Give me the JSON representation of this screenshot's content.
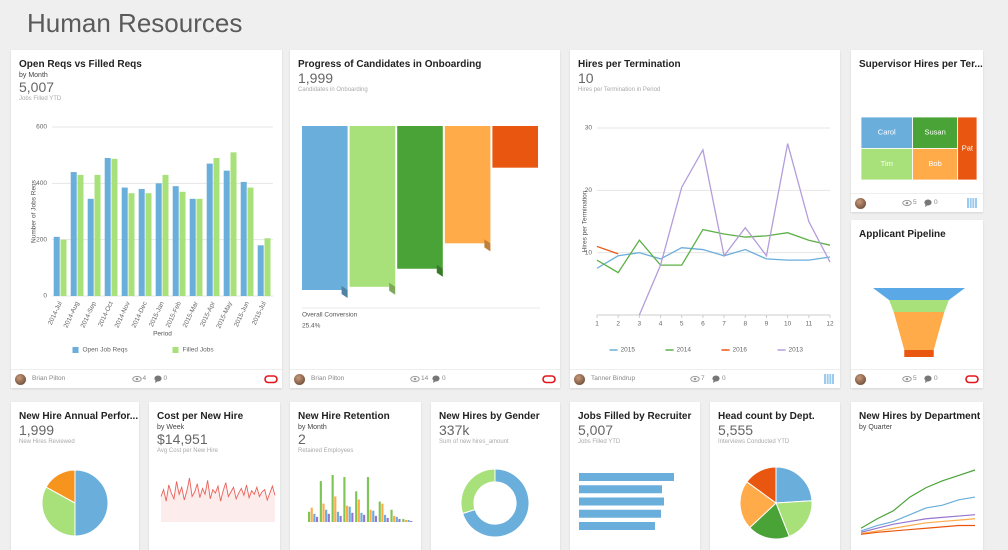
{
  "header": {
    "title": "Human Resources"
  },
  "cards": [
    {
      "title": "Open Reqs vs Filled Reqs",
      "subtitle": "by Month",
      "kpi": "5,007",
      "kpi_label": "Jobs Filled YTD",
      "footer": {
        "user": "Brian Pilton",
        "views": "4",
        "comments": "0"
      },
      "chart": {
        "type": "bar",
        "y_label": "Number of Jobs Reqs",
        "x_label": "Period",
        "categories": [
          "2014-Jul",
          "2014-Aug",
          "2014-Sep",
          "2014-Oct",
          "2014-Nov",
          "2014-Dec",
          "2015-Jan",
          "2015-Feb",
          "2015-Mar",
          "2015-Apr",
          "2015-May",
          "2015-Jun",
          "2015-Jul"
        ],
        "series": [
          {
            "name": "Open Job Reqs",
            "color": "#6aaedb",
            "values": [
              210,
              440,
              345,
              490,
              385,
              380,
              400,
              390,
              345,
              470,
              445,
              405,
              180
            ]
          },
          {
            "name": "Filled Jobs",
            "color": "#a8e07a",
            "values": [
              200,
              430,
              430,
              487,
              365,
              365,
              430,
              370,
              345,
              490,
              510,
              385,
              205
            ]
          }
        ],
        "ylim": [
          0,
          600
        ],
        "yticks": [
          0,
          200,
          400,
          600
        ],
        "grid": true
      }
    },
    {
      "title": "Progress of Candidates in Onboarding",
      "kpi": "1,999",
      "kpi_label": "Candidates in Onboarding",
      "footer": {
        "user": "Brian Pilton",
        "views": "14",
        "comments": "0"
      },
      "chart": {
        "type": "stepped-funnel",
        "values": [
          1999,
          1960,
          1740,
          1430,
          508
        ],
        "colors": [
          "#6aaedb",
          "#a8e07a",
          "#4aa336",
          "#ffab4a",
          "#e8560f"
        ],
        "annotation": "Overall Conversion",
        "annotation_value": "25.4%"
      }
    },
    {
      "title": "Hires per Termination",
      "kpi": "10",
      "kpi_label": "Hires per Termination in Period",
      "footer": {
        "user": "Tanner Bindrup",
        "views": "7",
        "comments": "0"
      },
      "chart": {
        "type": "line",
        "y_label": "Hires per Termination",
        "x": [
          1,
          2,
          3,
          4,
          5,
          6,
          7,
          8,
          9,
          10,
          11,
          12
        ],
        "xlim": [
          1,
          12
        ],
        "xticks": [
          1,
          2,
          3,
          4,
          5,
          6,
          7,
          8,
          9,
          10,
          11,
          12
        ],
        "ylim": [
          0,
          30
        ],
        "yticks": [
          10,
          20,
          30
        ],
        "grid": true,
        "series": [
          {
            "name": "2015",
            "color": "#6aaedb",
            "values": [
              7.5,
              9.5,
              10,
              9,
              10.8,
              10.5,
              9.5,
              10.5,
              9,
              8.8,
              8.8,
              9.3
            ]
          },
          {
            "name": "2014",
            "color": "#5cb046",
            "values": [
              8.8,
              6.8,
              12,
              8,
              8,
              13.7,
              13,
              12.5,
              12.7,
              13.2,
              12,
              11.2
            ]
          },
          {
            "name": "2016",
            "color": "#e8560f",
            "values": [
              11,
              9.8,
              null,
              null,
              null,
              null,
              null,
              null,
              null,
              null,
              null,
              null
            ]
          },
          {
            "name": "2013",
            "color": "#b39ddb",
            "values": [
              null,
              null,
              0,
              8,
              20.5,
              26.5,
              9.5,
              14,
              9.5,
              27.5,
              15,
              8.5
            ]
          }
        ]
      }
    },
    {
      "title": "Supervisor Hires per Ter...",
      "footer": {
        "views": "5",
        "comments": "0"
      },
      "chart": {
        "type": "treemap",
        "items": [
          {
            "name": "Carol",
            "value": 4,
            "color": "#6aaedb"
          },
          {
            "name": "Tim",
            "value": 4,
            "color": "#a8e07a"
          },
          {
            "name": "Susan",
            "value": 3.5,
            "color": "#4aa336"
          },
          {
            "name": "Bob",
            "value": 3.5,
            "color": "#ffab4a"
          },
          {
            "name": "Pat",
            "value": 3,
            "color": "#e8560f"
          }
        ]
      }
    },
    {
      "title": "Applicant Pipeline",
      "footer": {
        "views": "5",
        "comments": "0"
      },
      "chart": {
        "type": "funnel",
        "values": [
          100,
          65,
          55,
          32
        ],
        "colors": [
          "#5aa9e6",
          "#a8e07a",
          "#ffab4a",
          "#e8560f"
        ]
      }
    },
    {
      "title": "New Hire Annual Perfor...",
      "kpi": "1,999",
      "kpi_label": "New Hires Reviewed",
      "chart": {
        "type": "pie",
        "values": [
          50,
          33,
          17
        ],
        "colors": [
          "#6aaedb",
          "#a8e07a",
          "#f7941d"
        ]
      }
    },
    {
      "title": "Cost per New Hire",
      "subtitle": "by Week",
      "kpi": "$14,951",
      "kpi_label": "Avg Cost per New Hire",
      "chart": {
        "type": "area",
        "color": "#e8635a",
        "values": [
          22,
          28,
          18,
          32,
          25,
          20,
          35,
          24,
          30,
          19,
          27,
          38,
          22,
          26,
          33,
          21,
          29,
          24,
          36,
          20,
          28,
          25,
          31,
          18,
          27,
          34,
          22,
          26,
          30,
          20,
          25,
          29,
          23,
          32,
          21,
          27,
          24,
          30,
          22,
          26,
          28,
          19,
          25,
          31,
          23
        ]
      }
    },
    {
      "title": "New Hire Retention",
      "subtitle": "by Month",
      "kpi": "2",
      "kpi_label": "Retained Employees",
      "chart": {
        "type": "column",
        "series": [
          {
            "color": "#7cc653",
            "values": [
              10,
              40,
              46,
              44,
              30,
              44,
              20,
              12,
              3
            ]
          },
          {
            "color": "#ffab4a",
            "values": [
              14,
              18,
              25,
              16,
              22,
              12,
              18,
              6,
              2
            ]
          },
          {
            "color": "#6aaedb",
            "values": [
              8,
              12,
              10,
              15,
              9,
              11,
              7,
              5,
              2
            ]
          },
          {
            "color": "#9575cd",
            "values": [
              5,
              8,
              6,
              9,
              7,
              6,
              4,
              3,
              1
            ]
          }
        ]
      }
    },
    {
      "title": "New Hires by Gender",
      "kpi": "337k",
      "kpi_label": "Sum of new hires_amount",
      "chart": {
        "type": "donut",
        "values": [
          70,
          30
        ],
        "colors": [
          "#6aaedb",
          "#a8e07a"
        ]
      }
    },
    {
      "title": "Jobs Filled by Recruiter",
      "kpi": "5,007",
      "kpi_label": "Jobs Filled YTD",
      "chart": {
        "type": "hbar",
        "color": "#6aaedb",
        "values": [
          95,
          83,
          85,
          82,
          76
        ]
      }
    },
    {
      "title": "Head count by Dept.",
      "kpi": "5,555",
      "kpi_label": "Interviews Conducted YTD",
      "chart": {
        "type": "pie",
        "values": [
          24,
          20,
          19,
          22,
          15
        ],
        "colors": [
          "#6aaedb",
          "#a8e07a",
          "#4aa336",
          "#ffab4a",
          "#e8560f"
        ]
      }
    },
    {
      "title": "New Hires by Department",
      "subtitle": "by Quarter",
      "chart": {
        "type": "multiline",
        "series": [
          {
            "color": "#4aa336",
            "values": [
              5,
              12,
              18,
              28,
              35,
              40,
              44,
              48
            ]
          },
          {
            "color": "#6aaedb",
            "values": [
              3,
              7,
              10,
              15,
              20,
              22,
              26,
              28
            ]
          },
          {
            "color": "#9575cd",
            "values": [
              2,
              5,
              8,
              10,
              12,
              13,
              14,
              15
            ]
          },
          {
            "color": "#ffab4a",
            "values": [
              1,
              3,
              5,
              7,
              9,
              10,
              11,
              12
            ]
          },
          {
            "color": "#e8560f",
            "values": [
              0.5,
              2,
              3,
              4,
              5,
              6,
              7,
              7
            ]
          }
        ]
      }
    }
  ]
}
